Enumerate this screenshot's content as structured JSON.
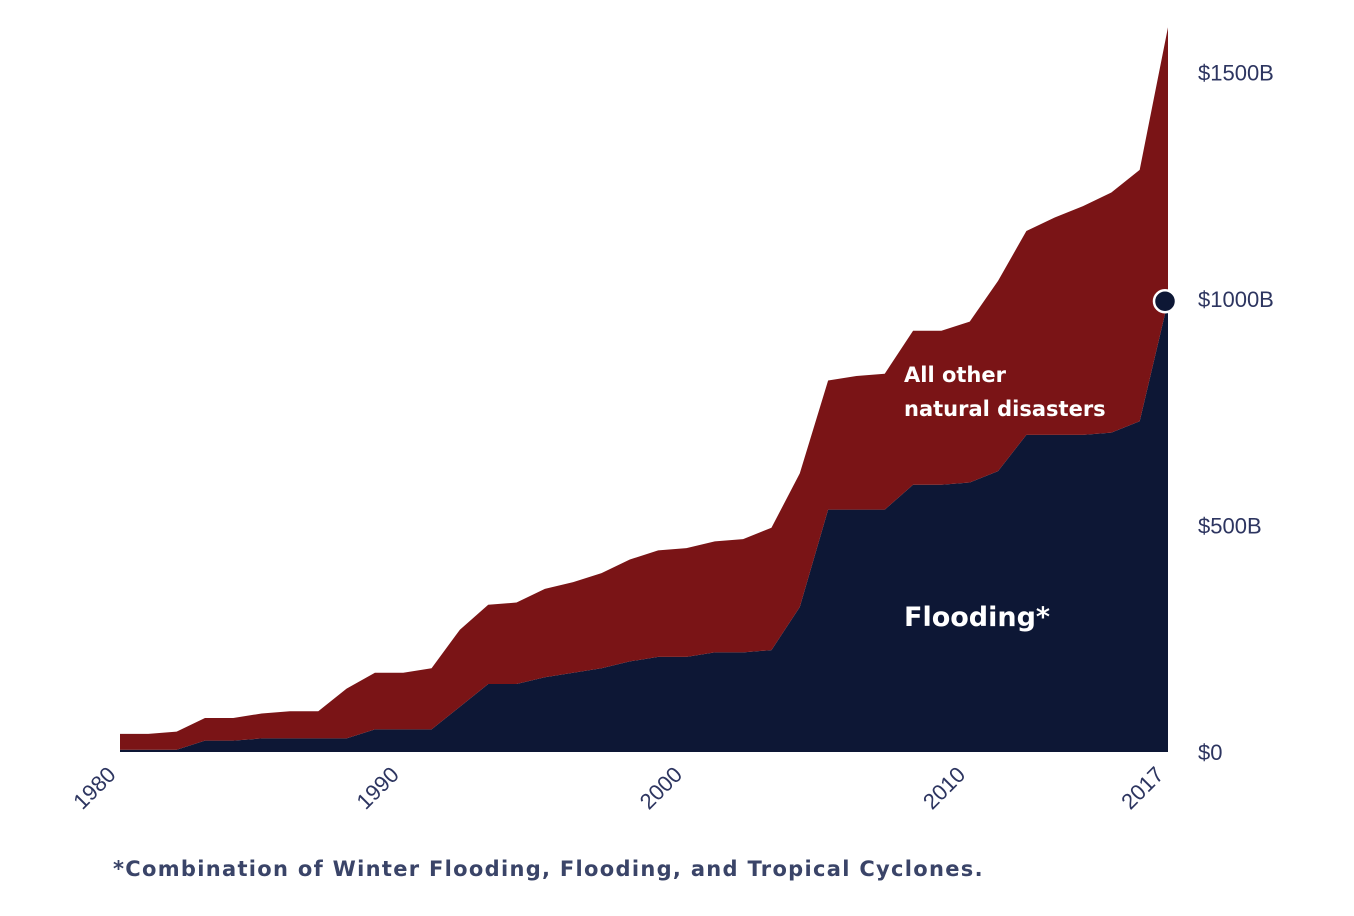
{
  "chart_data": {
    "type": "area",
    "stacked": true,
    "x": [
      1980,
      1981,
      1982,
      1983,
      1984,
      1985,
      1986,
      1987,
      1988,
      1989,
      1990,
      1991,
      1992,
      1993,
      1994,
      1995,
      1996,
      1997,
      1998,
      1999,
      2000,
      2001,
      2002,
      2003,
      2004,
      2005,
      2006,
      2007,
      2008,
      2009,
      2010,
      2011,
      2012,
      2013,
      2014,
      2015,
      2016,
      2017
    ],
    "series": [
      {
        "name": "Flooding*",
        "color": "#0d1735",
        "values": [
          5,
          5,
          5,
          25,
          25,
          30,
          30,
          30,
          30,
          50,
          50,
          50,
          100,
          150,
          150,
          165,
          175,
          185,
          200,
          210,
          210,
          220,
          220,
          225,
          320,
          535,
          535,
          535,
          590,
          590,
          595,
          620,
          700,
          700,
          700,
          705,
          730,
          995
        ]
      },
      {
        "name": "All other natural disasters",
        "color": "#7a1416",
        "values": [
          35,
          35,
          40,
          50,
          50,
          55,
          60,
          60,
          110,
          125,
          125,
          135,
          170,
          175,
          180,
          195,
          200,
          210,
          225,
          235,
          240,
          245,
          250,
          270,
          295,
          285,
          295,
          300,
          340,
          340,
          355,
          420,
          450,
          480,
          505,
          530,
          555,
          605
        ]
      }
    ],
    "ylim": [
      0,
      1600
    ],
    "yticks": [
      {
        "value": 0,
        "label": "$0"
      },
      {
        "value": 500,
        "label": "$500B"
      },
      {
        "value": 1000,
        "label": "$1000B"
      },
      {
        "value": 1500,
        "label": "$1500B"
      }
    ],
    "xticks": [
      {
        "value": 1980,
        "label": "1980"
      },
      {
        "value": 1990,
        "label": "1990"
      },
      {
        "value": 2000,
        "label": "2000"
      },
      {
        "value": 2010,
        "label": "2010"
      },
      {
        "value": 2017,
        "label": "2017"
      }
    ],
    "marker": {
      "x": 2017,
      "y": 995,
      "color": "#0d1735"
    },
    "labels": {
      "other": [
        "All other",
        "natural disasters"
      ],
      "flooding": "Flooding*"
    },
    "grid": false,
    "legend": "none"
  },
  "footnote": "*Combination of Winter Flooding, Flooding, and Tropical Cyclones."
}
